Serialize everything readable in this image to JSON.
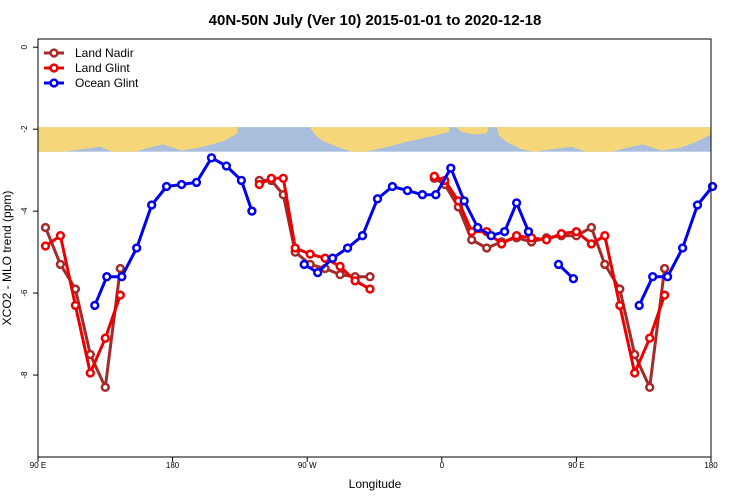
{
  "chart_data": {
    "type": "line",
    "title": "40N-50N July (Ver 10)   2015-01-01 to 2020-12-18",
    "xlabel": "Longitude",
    "ylabel": "XCO2 - MLO trend (ppm)",
    "xlim": [
      90,
      540
    ],
    "ylim": [
      -10,
      0.2
    ],
    "x_ticks": [
      {
        "value": 90,
        "label": "90 E"
      },
      {
        "value": 180,
        "label": "180"
      },
      {
        "value": 270,
        "label": "90 W"
      },
      {
        "value": 360,
        "label": "0"
      },
      {
        "value": 450,
        "label": "90 E"
      },
      {
        "value": 540,
        "label": "180"
      }
    ],
    "y_ticks": [
      {
        "value": 0,
        "label": "0"
      },
      {
        "value": -2,
        "label": "-2"
      },
      {
        "value": -4,
        "label": "-4"
      },
      {
        "value": -6,
        "label": "-6"
      },
      {
        "value": -8,
        "label": "-8"
      }
    ],
    "map_strip": {
      "y_top": -1.95,
      "y_bottom": -2.55,
      "land_color": "#f5d77a",
      "ocean_color": "#a9bedc"
    },
    "legend": {
      "position": "top-left"
    },
    "series": [
      {
        "name": "Land Nadir",
        "color": "#a52a2a",
        "segments": [
          [
            [
              95,
              -4.4
            ],
            [
              105,
              -5.3
            ],
            [
              115,
              -5.9
            ],
            [
              125,
              -7.5
            ],
            [
              135,
              -8.3
            ],
            [
              145,
              -5.4
            ]
          ],
          [
            [
              238,
              -3.25
            ],
            [
              246,
              -3.25
            ],
            [
              254,
              -3.6
            ],
            [
              262,
              -5.0
            ],
            [
              272,
              -5.3
            ],
            [
              282,
              -5.4
            ],
            [
              292,
              -5.55
            ],
            [
              302,
              -5.6
            ],
            [
              312,
              -5.6
            ]
          ],
          [
            [
              355,
              -3.2
            ],
            [
              362,
              -3.35
            ],
            [
              371,
              -3.9
            ],
            [
              380,
              -4.7
            ],
            [
              390,
              -4.9
            ],
            [
              400,
              -4.75
            ],
            [
              410,
              -4.65
            ],
            [
              420,
              -4.75
            ],
            [
              430,
              -4.65
            ],
            [
              440,
              -4.6
            ],
            [
              450,
              -4.6
            ],
            [
              460,
              -4.4
            ],
            [
              469,
              -5.3
            ],
            [
              479,
              -5.9
            ],
            [
              489,
              -7.5
            ],
            [
              499,
              -8.3
            ],
            [
              509,
              -5.4
            ]
          ]
        ]
      },
      {
        "name": "Land Glint",
        "color": "#ee0000",
        "segments": [
          [
            [
              95,
              -4.85
            ],
            [
              105,
              -4.6
            ],
            [
              115,
              -6.3
            ],
            [
              125,
              -7.95
            ],
            [
              135,
              -7.1
            ],
            [
              145,
              -6.05
            ]
          ],
          [
            [
              238,
              -3.35
            ],
            [
              246,
              -3.2
            ],
            [
              254,
              -3.2
            ],
            [
              262,
              -4.9
            ],
            [
              272,
              -5.05
            ],
            [
              282,
              -5.15
            ],
            [
              292,
              -5.35
            ],
            [
              302,
              -5.7
            ],
            [
              312,
              -5.9
            ]
          ],
          [
            [
              355,
              -3.15
            ],
            [
              362,
              -3.25
            ],
            [
              371,
              -3.75
            ],
            [
              380,
              -4.5
            ],
            [
              390,
              -4.5
            ],
            [
              400,
              -4.8
            ],
            [
              410,
              -4.6
            ],
            [
              420,
              -4.65
            ],
            [
              430,
              -4.7
            ],
            [
              440,
              -4.55
            ],
            [
              450,
              -4.5
            ],
            [
              460,
              -4.8
            ],
            [
              469,
              -4.6
            ],
            [
              479,
              -6.3
            ],
            [
              489,
              -7.95
            ],
            [
              499,
              -7.1
            ],
            [
              509,
              -6.05
            ]
          ]
        ]
      },
      {
        "name": "Ocean Glint",
        "color": "#0000ee",
        "segments": [
          [
            [
              128,
              -6.3
            ],
            [
              136,
              -5.6
            ],
            [
              146,
              -5.6
            ],
            [
              156,
              -4.9
            ],
            [
              166,
              -3.85
            ],
            [
              176,
              -3.4
            ],
            [
              186,
              -3.35
            ],
            [
              196,
              -3.3
            ],
            [
              206,
              -2.7
            ],
            [
              216,
              -2.9
            ],
            [
              226,
              -3.25
            ],
            [
              233,
              -4.0
            ]
          ],
          [
            [
              268,
              -5.3
            ],
            [
              277,
              -5.5
            ],
            [
              287,
              -5.15
            ],
            [
              297,
              -4.9
            ],
            [
              307,
              -4.6
            ],
            [
              317,
              -3.7
            ],
            [
              327,
              -3.4
            ],
            [
              337,
              -3.5
            ],
            [
              347,
              -3.6
            ],
            [
              356,
              -3.6
            ],
            [
              366,
              -2.95
            ],
            [
              375,
              -3.75
            ],
            [
              384,
              -4.4
            ],
            [
              393,
              -4.6
            ],
            [
              402,
              -4.5
            ],
            [
              410,
              -3.8
            ],
            [
              418,
              -4.5
            ]
          ],
          [
            [
              438,
              -5.3
            ],
            [
              448,
              -5.65
            ]
          ],
          [
            [
              492,
              -6.3
            ],
            [
              501,
              -5.6
            ],
            [
              511,
              -5.6
            ],
            [
              521,
              -4.9
            ],
            [
              531,
              -3.85
            ],
            [
              541,
              -3.4
            ]
          ]
        ]
      }
    ]
  }
}
